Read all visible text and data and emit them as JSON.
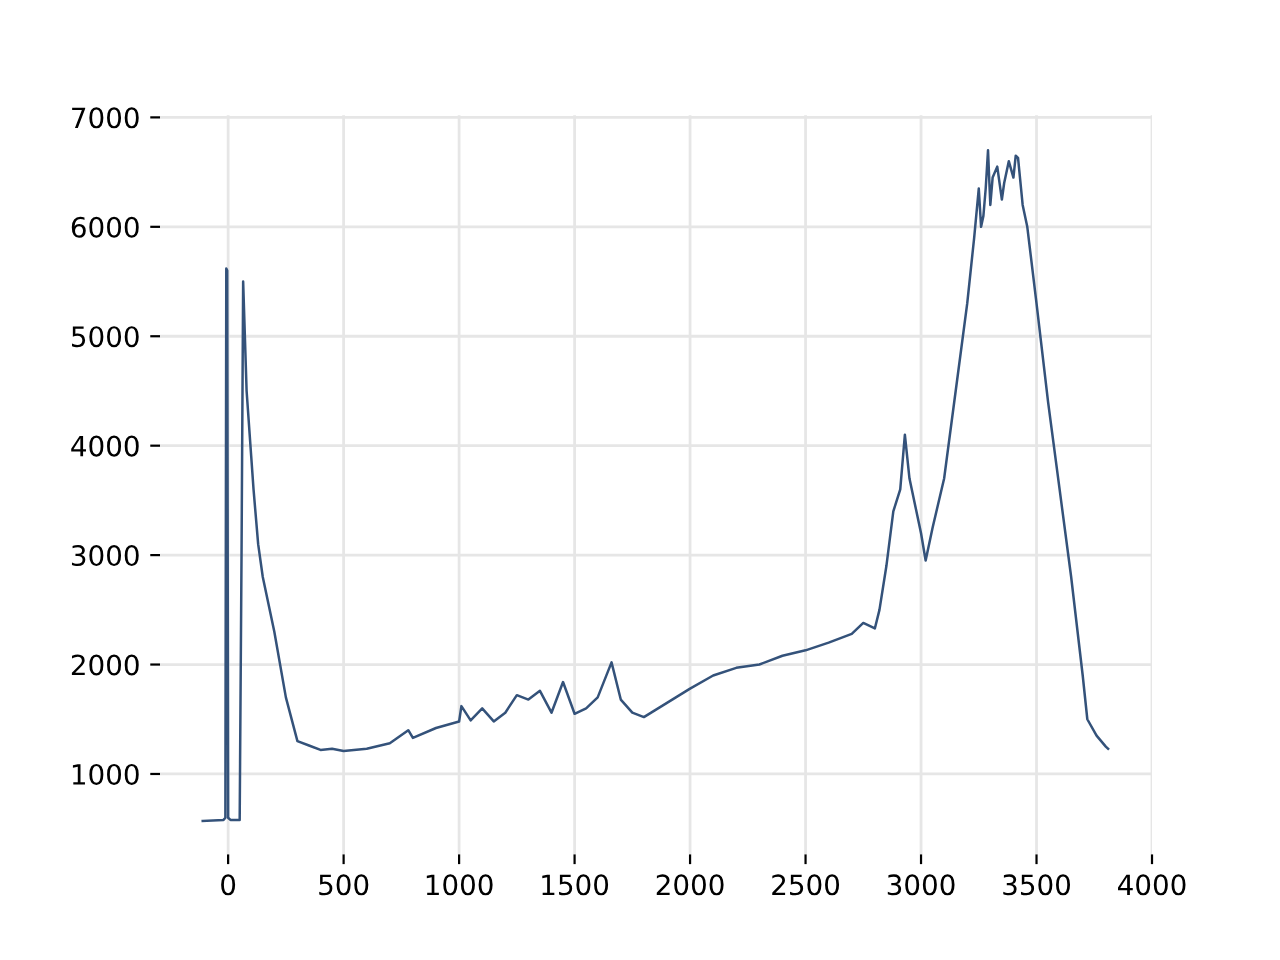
{
  "chart_data": {
    "type": "line",
    "x": [
      -110,
      -20,
      -12,
      -8,
      -4,
      0,
      10,
      50,
      58,
      65,
      80,
      100,
      110,
      130,
      150,
      200,
      250,
      300,
      350,
      400,
      450,
      500,
      600,
      700,
      780,
      800,
      900,
      1000,
      1010,
      1050,
      1100,
      1150,
      1200,
      1250,
      1300,
      1350,
      1400,
      1450,
      1500,
      1550,
      1600,
      1660,
      1700,
      1750,
      1800,
      1900,
      2000,
      2100,
      2200,
      2300,
      2400,
      2500,
      2600,
      2700,
      2750,
      2800,
      2820,
      2850,
      2880,
      2910,
      2930,
      2950,
      3000,
      3020,
      3050,
      3100,
      3150,
      3200,
      3230,
      3250,
      3260,
      3270,
      3280,
      3290,
      3300,
      3310,
      3330,
      3350,
      3360,
      3380,
      3400,
      3410,
      3420,
      3440,
      3460,
      3500,
      3550,
      3600,
      3650,
      3700,
      3720,
      3760,
      3800,
      3810
    ],
    "series": [
      {
        "color": "#34527a",
        "values": [
          570,
          580,
          600,
          5620,
          5600,
          600,
          580,
          580,
          3000,
          5500,
          4500,
          3900,
          3600,
          3100,
          2800,
          2300,
          1700,
          1300,
          1260,
          1220,
          1230,
          1210,
          1230,
          1280,
          1400,
          1330,
          1420,
          1480,
          1620,
          1490,
          1600,
          1480,
          1560,
          1720,
          1680,
          1760,
          1560,
          1840,
          1550,
          1600,
          1700,
          2020,
          1680,
          1560,
          1520,
          1650,
          1780,
          1900,
          1970,
          2000,
          2080,
          2130,
          2200,
          2280,
          2380,
          2330,
          2500,
          2900,
          3400,
          3600,
          4100,
          3700,
          3200,
          2950,
          3250,
          3700,
          4500,
          5300,
          5900,
          6350,
          6000,
          6100,
          6350,
          6700,
          6200,
          6450,
          6550,
          6250,
          6400,
          6600,
          6450,
          6650,
          6630,
          6200,
          6000,
          5300,
          4400,
          3600,
          2800,
          1900,
          1500,
          1350,
          1250,
          1230
        ]
      }
    ],
    "xlim": [
      -295,
      4000
    ],
    "ylim": [
      265,
      7020
    ],
    "xticks": [
      0,
      500,
      1000,
      1500,
      2000,
      2500,
      3000,
      3500,
      4000
    ],
    "yticks": [
      1000,
      2000,
      3000,
      4000,
      5000,
      6000,
      7000
    ],
    "grid": true,
    "legend": false
  }
}
